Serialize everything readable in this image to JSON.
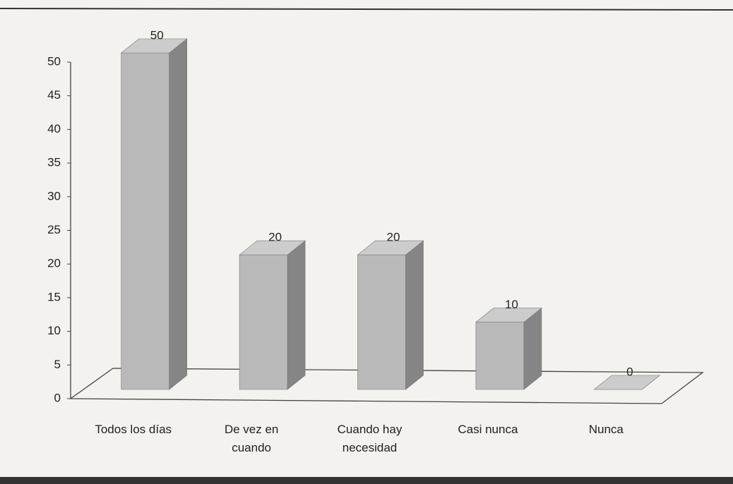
{
  "chart_data": {
    "type": "bar3d",
    "categories": [
      "Todos los días",
      "De vez en cuando",
      "Cuando hay necesidad",
      "Casi nunca",
      "Nunca"
    ],
    "values": [
      50,
      20,
      20,
      10,
      0
    ],
    "color": "#b9b9b9",
    "ylim": [
      0,
      50
    ],
    "yticks": [
      0,
      5,
      10,
      15,
      20,
      25,
      30,
      35,
      40,
      45,
      50
    ],
    "grid": false
  }
}
